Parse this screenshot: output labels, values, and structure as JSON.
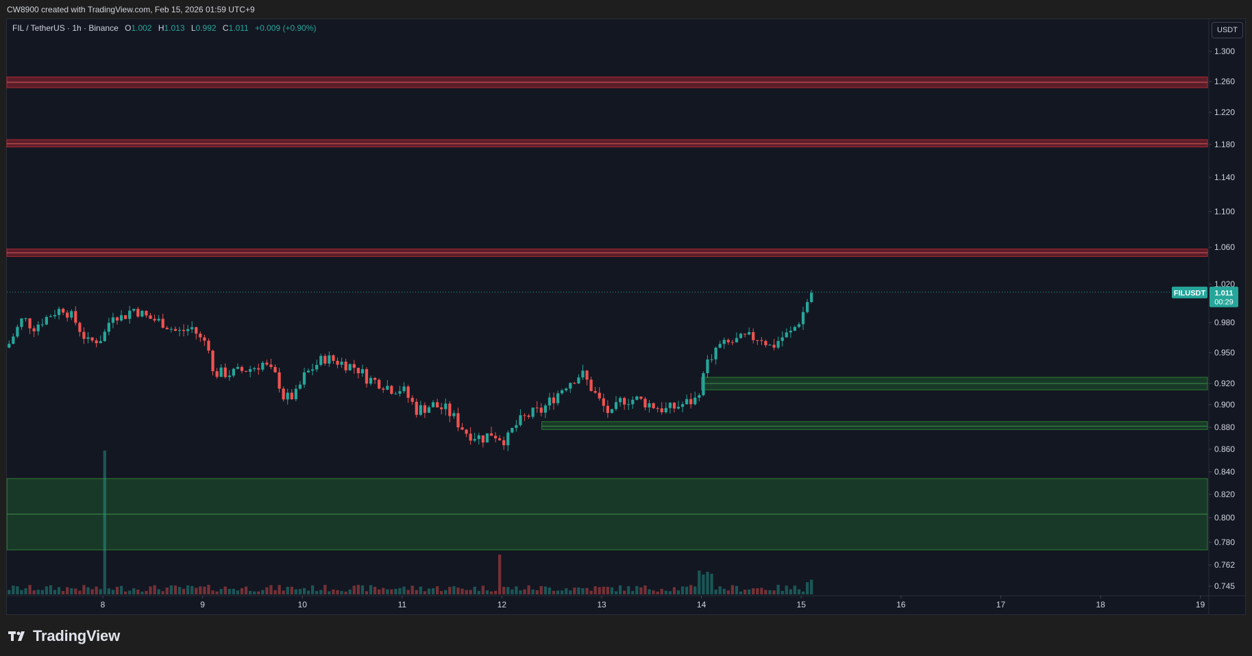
{
  "header": {
    "credit": "CW8900 created with TradingView.com, Feb 15, 2026 01:59 UTC+9"
  },
  "legend": {
    "title": "FIL / TetherUS · 1h · Binance",
    "o_label": "O",
    "o": "1.002",
    "h_label": "H",
    "h": "1.013",
    "l_label": "L",
    "l": "0.992",
    "c_label": "C",
    "c": "1.011",
    "change": "+0.009 (+0.90%)"
  },
  "price_axis": {
    "unit": "USDT"
  },
  "price_tag": {
    "symbol": "FILUSDT",
    "price": "1.011",
    "countdown": "00:29"
  },
  "brand": {
    "name": "TradingView"
  },
  "colors": {
    "up": "#26a69a",
    "down": "#ef5350",
    "resistance": "#b22833",
    "support": "#2e7d32",
    "background": "#131722"
  },
  "chart_data": {
    "type": "candlestick",
    "symbol": "FIL/USDT",
    "interval": "1h",
    "y_ticks": [
      {
        "v": 1.3,
        "label": "1.300"
      },
      {
        "v": 1.26,
        "label": "1.260"
      },
      {
        "v": 1.22,
        "label": "1.220"
      },
      {
        "v": 1.18,
        "label": "1.180"
      },
      {
        "v": 1.14,
        "label": "1.140"
      },
      {
        "v": 1.1,
        "label": "1.100"
      },
      {
        "v": 1.06,
        "label": "1.060"
      },
      {
        "v": 1.02,
        "label": "1.020"
      },
      {
        "v": 0.98,
        "label": "0.980"
      },
      {
        "v": 0.95,
        "label": "0.950"
      },
      {
        "v": 0.92,
        "label": "0.920"
      },
      {
        "v": 0.9,
        "label": "0.900"
      },
      {
        "v": 0.88,
        "label": "0.880"
      },
      {
        "v": 0.86,
        "label": "0.860"
      },
      {
        "v": 0.84,
        "label": "0.840"
      },
      {
        "v": 0.82,
        "label": "0.820"
      },
      {
        "v": 0.8,
        "label": "0.800"
      },
      {
        "v": 0.78,
        "label": "0.780"
      },
      {
        "v": 0.762,
        "label": "0.762"
      },
      {
        "v": 0.745,
        "label": "0.745"
      }
    ],
    "x_ticks": [
      {
        "day": 8,
        "label": "8"
      },
      {
        "day": 9,
        "label": "9"
      },
      {
        "day": 10,
        "label": "10"
      },
      {
        "day": 11,
        "label": "11"
      },
      {
        "day": 12,
        "label": "12"
      },
      {
        "day": 13,
        "label": "13"
      },
      {
        "day": 14,
        "label": "14"
      },
      {
        "day": 15,
        "label": "15"
      },
      {
        "day": 16,
        "label": "16"
      },
      {
        "day": 17,
        "label": "17"
      },
      {
        "day": 18,
        "label": "18"
      },
      {
        "day": 19,
        "label": "19"
      }
    ],
    "x_range": [
      7.04,
      19.02
    ],
    "last_price": 1.011,
    "resistance_zones": [
      {
        "low": 1.252,
        "high": 1.266,
        "mid": 1.259
      },
      {
        "low": 1.177,
        "high": 1.186,
        "mid": 1.181
      },
      {
        "low": 1.05,
        "high": 1.058,
        "mid": 1.054
      }
    ],
    "support_zones": [
      {
        "start_day": 14.0,
        "low": 0.914,
        "high": 0.926,
        "mid": 0.92
      },
      {
        "start_day": 12.4,
        "low": 0.878,
        "high": 0.885,
        "mid": 0.881
      },
      {
        "start_day": 7.04,
        "low": 0.774,
        "high": 0.834,
        "mid": 0.803
      }
    ],
    "path": [
      [
        7.04,
        0.955
      ],
      [
        7.2,
        0.985
      ],
      [
        7.3,
        0.975
      ],
      [
        7.5,
        0.99
      ],
      [
        7.6,
        0.995
      ],
      [
        7.7,
        0.985
      ],
      [
        7.85,
        0.96
      ],
      [
        8.0,
        0.965
      ],
      [
        8.1,
        0.99
      ],
      [
        8.2,
        0.985
      ],
      [
        8.3,
        0.995
      ],
      [
        8.45,
        0.985
      ],
      [
        8.6,
        0.98
      ],
      [
        8.75,
        0.97
      ],
      [
        8.9,
        0.975
      ],
      [
        9.0,
        0.96
      ],
      [
        9.05,
        0.965
      ],
      [
        9.1,
        0.93
      ],
      [
        9.3,
        0.93
      ],
      [
        9.5,
        0.935
      ],
      [
        9.6,
        0.94
      ],
      [
        9.75,
        0.925
      ],
      [
        9.82,
        0.905
      ],
      [
        9.95,
        0.91
      ],
      [
        10.0,
        0.925
      ],
      [
        10.1,
        0.935
      ],
      [
        10.22,
        0.945
      ],
      [
        10.4,
        0.94
      ],
      [
        10.55,
        0.935
      ],
      [
        10.65,
        0.925
      ],
      [
        10.8,
        0.92
      ],
      [
        10.9,
        0.915
      ],
      [
        11.0,
        0.915
      ],
      [
        11.15,
        0.895
      ],
      [
        11.3,
        0.9
      ],
      [
        11.45,
        0.895
      ],
      [
        11.55,
        0.885
      ],
      [
        11.65,
        0.875
      ],
      [
        11.8,
        0.87
      ],
      [
        11.9,
        0.875
      ],
      [
        12.0,
        0.87
      ],
      [
        12.05,
        0.868
      ],
      [
        12.12,
        0.88
      ],
      [
        12.25,
        0.89
      ],
      [
        12.4,
        0.895
      ],
      [
        12.55,
        0.91
      ],
      [
        12.65,
        0.92
      ],
      [
        12.8,
        0.93
      ],
      [
        12.9,
        0.915
      ],
      [
        13.0,
        0.9
      ],
      [
        13.1,
        0.89
      ],
      [
        13.2,
        0.905
      ],
      [
        13.35,
        0.905
      ],
      [
        13.5,
        0.9
      ],
      [
        13.65,
        0.895
      ],
      [
        13.8,
        0.9
      ],
      [
        13.95,
        0.905
      ],
      [
        14.05,
        0.94
      ],
      [
        14.15,
        0.955
      ],
      [
        14.3,
        0.96
      ],
      [
        14.45,
        0.965
      ],
      [
        14.6,
        0.965
      ],
      [
        14.7,
        0.955
      ],
      [
        14.8,
        0.965
      ],
      [
        14.9,
        0.97
      ],
      [
        15.0,
        0.985
      ],
      [
        15.05,
        1.0
      ],
      [
        15.1,
        1.011
      ]
    ]
  }
}
